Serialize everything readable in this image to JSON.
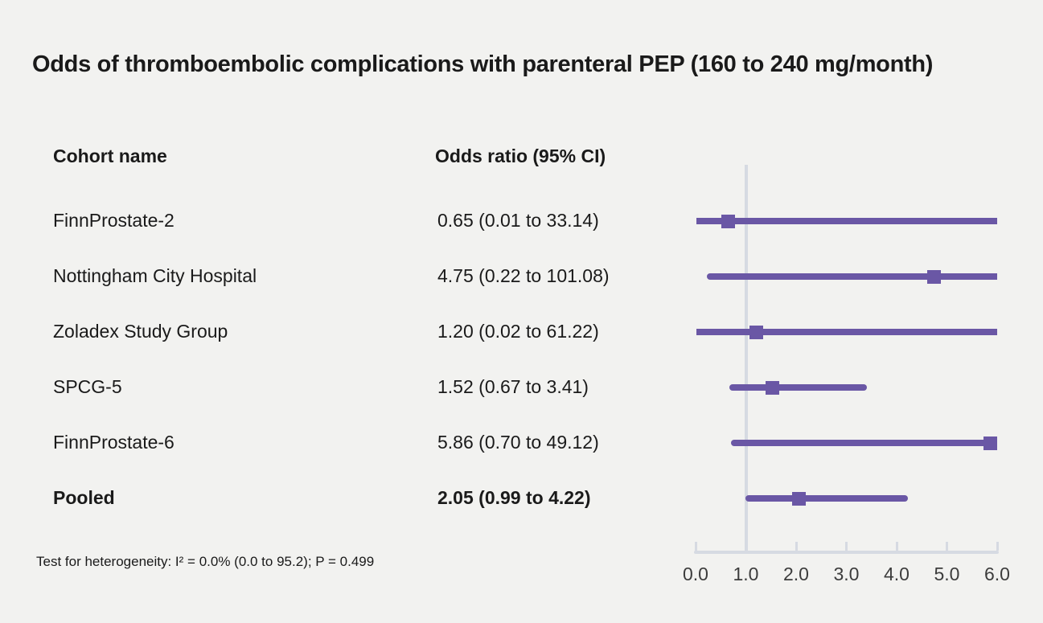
{
  "chart_data": {
    "type": "scatter",
    "variant": "forest-plot",
    "title": "Odds of thromboembolic complications with parenteral PEP (160 to 240 mg/month)",
    "columns": {
      "cohort": "Cohort name",
      "odds_ratio": "Odds ratio (95% CI)"
    },
    "rows": [
      {
        "label": "FinnProstate-2",
        "or_text": "0.65 (0.01 to 33.14)",
        "or": 0.65,
        "ci_low": 0.01,
        "ci_high": 33.14,
        "bold": false
      },
      {
        "label": "Nottingham City Hospital",
        "or_text": "4.75 (0.22 to 101.08)",
        "or": 4.75,
        "ci_low": 0.22,
        "ci_high": 101.08,
        "bold": false
      },
      {
        "label": "Zoladex Study Group",
        "or_text": "1.20 (0.02 to 61.22)",
        "or": 1.2,
        "ci_low": 0.02,
        "ci_high": 61.22,
        "bold": false
      },
      {
        "label": "SPCG-5",
        "or_text": "1.52 (0.67 to 3.41)",
        "or": 1.52,
        "ci_low": 0.67,
        "ci_high": 3.41,
        "bold": false
      },
      {
        "label": "FinnProstate-6",
        "or_text": "5.86 (0.70 to 49.12)",
        "or": 5.86,
        "ci_low": 0.7,
        "ci_high": 49.12,
        "bold": false
      },
      {
        "label": "Pooled",
        "or_text": "2.05 (0.99 to 4.22)",
        "or": 2.05,
        "ci_low": 0.99,
        "ci_high": 4.22,
        "bold": true
      }
    ],
    "axis": {
      "xlim": [
        0,
        6
      ],
      "ticks": [
        0,
        1,
        2,
        3,
        4,
        5,
        6
      ],
      "tick_labels": [
        "0.0",
        "1.0",
        "2.0",
        "3.0",
        "4.0",
        "5.0",
        "6.0"
      ],
      "reference_line": 1.0,
      "grid": false
    },
    "footnote": "Test for heterogeneity: I² = 0.0% (0.0 to 95.2); P = 0.499",
    "colors": {
      "estimate": "#6a57a5",
      "axis": "#d6dae2",
      "background": "#f2f2f0",
      "text": "#1a1a1a"
    }
  }
}
